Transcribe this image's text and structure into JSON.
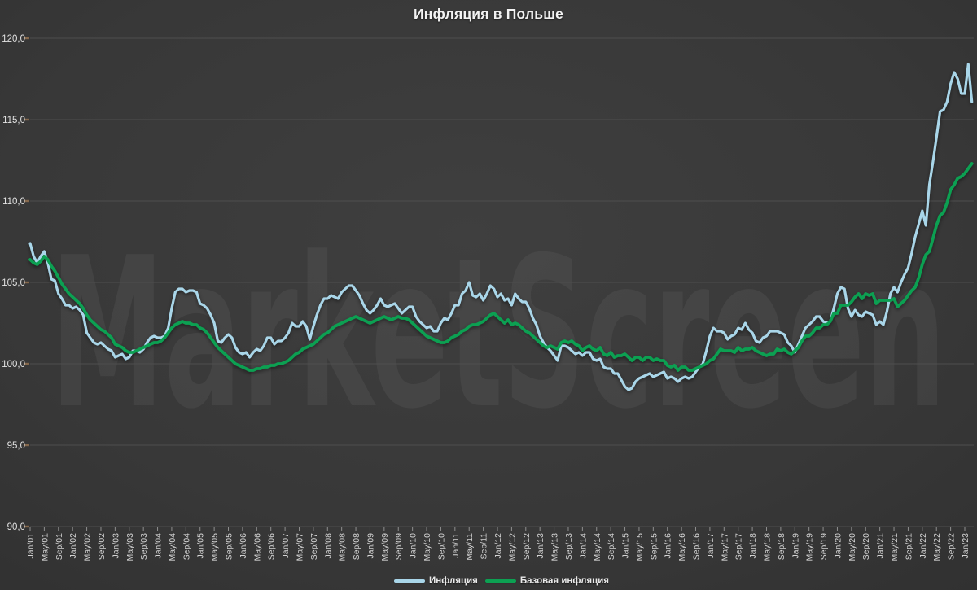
{
  "title": "Инфляция в Польше",
  "watermark": "MarketScreen",
  "colors": {
    "background": "#353535",
    "gridline": "#4e4e4e",
    "inflation_line": "#a9d6e9",
    "core_inflation_line": "#0ca052",
    "axis_text": "#d8d8d8",
    "title_text": "#f2f2f2"
  },
  "chart_data": {
    "type": "line",
    "title": "Инфляция в Польше",
    "xlabel": "",
    "ylabel": "",
    "ylim": [
      90,
      120
    ],
    "y_tick_step": 5,
    "grid": true,
    "legend_position": "bottom-center",
    "x_frequency": "monthly",
    "x_range": [
      "Jan/01",
      "Mar/23"
    ],
    "y_ticklabels": [
      "90,0",
      "95,0",
      "100,0",
      "105,0",
      "110,0",
      "115,0",
      "120,0"
    ],
    "x_ticklabels": [
      "Jan/01",
      "May/01",
      "Sep/01",
      "Jan/02",
      "May/02",
      "Sep/02",
      "Jan/03",
      "May/03",
      "Sep/03",
      "Jan/04",
      "May/04",
      "Sep/04",
      "Jan/05",
      "May/05",
      "Sep/05",
      "Jan/06",
      "May/06",
      "Sep/06",
      "Jan/07",
      "May/07",
      "Sep/07",
      "Jan/08",
      "May/08",
      "Sep/08",
      "Jan/09",
      "May/09",
      "Sep/09",
      "Jan/10",
      "May/10",
      "Sep/10",
      "Jan/11",
      "May/11",
      "Sep/11",
      "Jan/12",
      "May/12",
      "Sep/12",
      "Jan/13",
      "May/13",
      "Sep/13",
      "Jan/14",
      "May/14",
      "Sep/14",
      "Jan/15",
      "May/15",
      "Sep/15",
      "Jan/16",
      "May/16",
      "Sep/16",
      "Jan/17",
      "May/17",
      "Sep/17",
      "Jan/18",
      "May/18",
      "Sep/18",
      "Jan/19",
      "May/19",
      "Sep/19",
      "Jan/20",
      "May/20",
      "Sep/20",
      "Jan/21",
      "May/21",
      "Sep/21",
      "Jan/22",
      "May/22",
      "Sep/22",
      "Jan/23"
    ],
    "series": [
      {
        "name": "Инфляция",
        "color": "#a9d6e9",
        "values": [
          107.4,
          106.6,
          106.2,
          106.6,
          106.9,
          106.2,
          105.2,
          105.1,
          104.3,
          104.0,
          103.6,
          103.6,
          103.4,
          103.5,
          103.3,
          103.0,
          101.9,
          101.6,
          101.3,
          101.2,
          101.3,
          101.1,
          100.9,
          100.8,
          100.4,
          100.5,
          100.6,
          100.3,
          100.4,
          100.8,
          100.8,
          100.7,
          100.9,
          101.3,
          101.6,
          101.7,
          101.6,
          101.6,
          101.7,
          102.2,
          103.4,
          104.4,
          104.6,
          104.6,
          104.4,
          104.5,
          104.5,
          104.4,
          103.7,
          103.6,
          103.4,
          103.0,
          102.5,
          101.4,
          101.3,
          101.6,
          101.8,
          101.6,
          101.0,
          100.7,
          100.6,
          100.7,
          100.4,
          100.7,
          100.9,
          100.8,
          101.1,
          101.6,
          101.6,
          101.2,
          101.4,
          101.4,
          101.6,
          101.9,
          102.5,
          102.3,
          102.3,
          102.6,
          102.3,
          101.5,
          102.3,
          103.0,
          103.6,
          104.0,
          104.0,
          104.2,
          104.1,
          104.0,
          104.4,
          104.6,
          104.8,
          104.8,
          104.5,
          104.2,
          103.7,
          103.3,
          103.1,
          103.3,
          103.6,
          104.0,
          103.6,
          103.5,
          103.6,
          103.7,
          103.4,
          103.1,
          103.3,
          103.5,
          103.5,
          102.9,
          102.6,
          102.4,
          102.2,
          102.3,
          102.0,
          102.0,
          102.5,
          102.8,
          102.7,
          103.1,
          103.6,
          103.6,
          104.3,
          104.5,
          105.0,
          104.2,
          104.1,
          104.3,
          103.9,
          104.3,
          104.8,
          104.6,
          104.1,
          104.3,
          103.9,
          104.0,
          103.6,
          104.3,
          104.0,
          103.8,
          103.8,
          103.4,
          102.8,
          102.4,
          101.7,
          101.3,
          101.0,
          100.8,
          100.5,
          100.2,
          101.1,
          101.1,
          101.0,
          100.8,
          100.6,
          100.7,
          100.5,
          100.7,
          100.7,
          100.3,
          100.2,
          100.3,
          99.8,
          99.7,
          99.7,
          99.4,
          99.4,
          99.0,
          98.6,
          98.4,
          98.5,
          98.9,
          99.1,
          99.2,
          99.3,
          99.4,
          99.2,
          99.3,
          99.4,
          99.5,
          99.1,
          99.2,
          99.1,
          98.9,
          99.1,
          99.2,
          99.1,
          99.2,
          99.5,
          99.8,
          100.0,
          100.8,
          101.7,
          102.2,
          102.0,
          102.0,
          101.9,
          101.5,
          101.7,
          101.8,
          102.2,
          102.1,
          102.5,
          102.1,
          101.9,
          101.4,
          101.3,
          101.6,
          101.7,
          102.0,
          102.0,
          102.0,
          101.9,
          101.8,
          101.3,
          101.1,
          100.7,
          101.2,
          101.7,
          102.2,
          102.4,
          102.6,
          102.9,
          102.9,
          102.6,
          102.5,
          102.6,
          103.4,
          104.3,
          104.7,
          104.6,
          103.4,
          102.9,
          103.3,
          103.0,
          102.9,
          103.2,
          103.1,
          103.0,
          102.4,
          102.6,
          102.4,
          103.2,
          104.3,
          104.7,
          104.4,
          105.0,
          105.5,
          105.9,
          106.8,
          107.8,
          108.6,
          109.4,
          108.5,
          111.0,
          112.4,
          113.9,
          115.5,
          115.6,
          116.1,
          117.2,
          117.9,
          117.5,
          116.6,
          116.6,
          118.4,
          116.1
        ]
      },
      {
        "name": "Базовая инфляция",
        "color": "#0ca052",
        "values": [
          106.4,
          106.2,
          106.1,
          106.3,
          106.6,
          106.4,
          106.0,
          105.7,
          105.3,
          104.9,
          104.6,
          104.3,
          104.1,
          103.9,
          103.7,
          103.4,
          103.0,
          102.7,
          102.5,
          102.3,
          102.1,
          102.0,
          101.8,
          101.6,
          101.2,
          101.1,
          101.0,
          100.8,
          100.7,
          100.7,
          100.8,
          100.9,
          101.0,
          101.1,
          101.2,
          101.3,
          101.3,
          101.4,
          101.6,
          101.9,
          102.2,
          102.4,
          102.5,
          102.6,
          102.5,
          102.5,
          102.4,
          102.4,
          102.2,
          102.1,
          101.9,
          101.6,
          101.3,
          101.0,
          100.8,
          100.6,
          100.4,
          100.2,
          100.0,
          99.9,
          99.8,
          99.7,
          99.6,
          99.6,
          99.7,
          99.7,
          99.8,
          99.8,
          99.9,
          99.9,
          100.0,
          100.0,
          100.1,
          100.2,
          100.4,
          100.6,
          100.7,
          100.9,
          101.0,
          101.1,
          101.2,
          101.4,
          101.6,
          101.8,
          101.9,
          102.1,
          102.3,
          102.4,
          102.5,
          102.6,
          102.7,
          102.8,
          102.9,
          102.8,
          102.7,
          102.6,
          102.5,
          102.6,
          102.7,
          102.8,
          102.9,
          102.8,
          102.7,
          102.8,
          102.9,
          102.8,
          102.8,
          102.7,
          102.5,
          102.3,
          102.1,
          101.9,
          101.7,
          101.6,
          101.5,
          101.4,
          101.3,
          101.3,
          101.4,
          101.6,
          101.7,
          101.8,
          102.0,
          102.1,
          102.3,
          102.4,
          102.4,
          102.5,
          102.6,
          102.8,
          103.0,
          103.1,
          102.9,
          102.7,
          102.5,
          102.7,
          102.4,
          102.5,
          102.4,
          102.2,
          102.0,
          101.9,
          101.7,
          101.5,
          101.3,
          101.1,
          101.0,
          101.1,
          101.0,
          100.9,
          101.3,
          101.4,
          101.3,
          101.4,
          101.2,
          101.1,
          100.8,
          101.0,
          101.1,
          100.9,
          100.8,
          101.0,
          100.6,
          100.5,
          100.7,
          100.4,
          100.5,
          100.5,
          100.6,
          100.4,
          100.2,
          100.4,
          100.4,
          100.2,
          100.4,
          100.4,
          100.2,
          100.3,
          100.2,
          100.2,
          99.9,
          99.8,
          99.9,
          99.6,
          99.8,
          99.8,
          99.6,
          99.6,
          99.7,
          99.8,
          99.9,
          100.0,
          100.2,
          100.3,
          100.6,
          100.9,
          100.8,
          100.8,
          100.8,
          100.7,
          101.0,
          100.8,
          100.9,
          100.9,
          101.0,
          100.8,
          100.7,
          100.6,
          100.5,
          100.6,
          100.6,
          100.9,
          100.8,
          100.9,
          100.7,
          100.6,
          100.8,
          101.0,
          101.4,
          101.7,
          101.7,
          101.9,
          102.2,
          102.2,
          102.4,
          102.4,
          102.6,
          103.1,
          103.1,
          103.6,
          103.6,
          103.6,
          103.8,
          104.1,
          104.3,
          104.0,
          104.3,
          104.2,
          104.3,
          103.7,
          103.9,
          103.9,
          103.9,
          103.9,
          104.0,
          103.5,
          103.7,
          103.9,
          104.2,
          104.5,
          104.7,
          105.3,
          106.1,
          106.7,
          106.9,
          107.7,
          108.5,
          109.1,
          109.3,
          109.9,
          110.7,
          111.0,
          111.4,
          111.5,
          111.7,
          112.0,
          112.3
        ]
      }
    ]
  }
}
